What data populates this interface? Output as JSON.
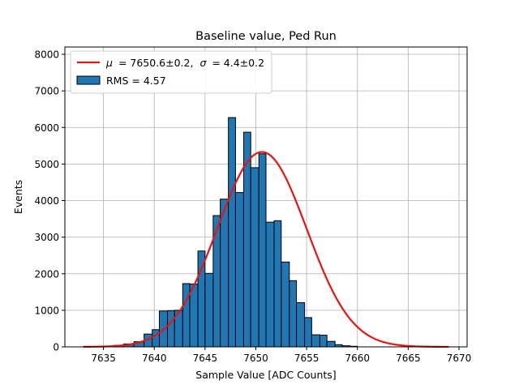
{
  "chart_data": {
    "type": "bar",
    "title": "Baseline value, Ped Run",
    "xlabel": "Sample Value [ADC Counts]",
    "ylabel": "Events",
    "xlim": [
      7631.2,
      7670.8
    ],
    "ylim": [
      0,
      8200
    ],
    "xticks": [
      7635,
      7640,
      7645,
      7650,
      7655,
      7660,
      7665,
      7670
    ],
    "yticks": [
      0,
      1000,
      2000,
      3000,
      4000,
      5000,
      6000,
      7000,
      8000
    ],
    "grid": true,
    "legend_position": "top-left",
    "histogram": {
      "name": "RMS = 4.57",
      "color": "#1f77b4",
      "edgecolor": "#000000",
      "bins": [
        {
          "x0": 7635.0,
          "x1": 7636.0,
          "value": 20
        },
        {
          "x0": 7636.0,
          "x1": 7637.0,
          "value": 40
        },
        {
          "x0": 7637.0,
          "x1": 7638.0,
          "value": 80
        },
        {
          "x0": 7638.0,
          "x1": 7639.0,
          "value": 140
        },
        {
          "x0": 7639.0,
          "x1": 7639.8,
          "value": 350
        },
        {
          "x0": 7639.8,
          "x1": 7640.5,
          "value": 470
        },
        {
          "x0": 7640.5,
          "x1": 7641.3,
          "value": 980
        },
        {
          "x0": 7641.3,
          "x1": 7642.0,
          "value": 990
        },
        {
          "x0": 7642.0,
          "x1": 7642.8,
          "value": 1000
        },
        {
          "x0": 7642.8,
          "x1": 7643.5,
          "value": 1730
        },
        {
          "x0": 7643.5,
          "x1": 7644.3,
          "value": 1720
        },
        {
          "x0": 7644.3,
          "x1": 7645.0,
          "value": 2620
        },
        {
          "x0": 7645.0,
          "x1": 7645.8,
          "value": 2010
        },
        {
          "x0": 7645.8,
          "x1": 7646.5,
          "value": 3590
        },
        {
          "x0": 7646.5,
          "x1": 7647.3,
          "value": 4040
        },
        {
          "x0": 7647.3,
          "x1": 7648.0,
          "value": 6270
        },
        {
          "x0": 7648.0,
          "x1": 7648.8,
          "value": 4220
        },
        {
          "x0": 7648.8,
          "x1": 7649.5,
          "value": 5870
        },
        {
          "x0": 7649.5,
          "x1": 7650.3,
          "value": 4900
        },
        {
          "x0": 7650.3,
          "x1": 7651.0,
          "value": 5280
        },
        {
          "x0": 7651.0,
          "x1": 7651.8,
          "value": 3410
        },
        {
          "x0": 7651.8,
          "x1": 7652.5,
          "value": 3450
        },
        {
          "x0": 7652.5,
          "x1": 7653.3,
          "value": 2320
        },
        {
          "x0": 7653.3,
          "x1": 7654.0,
          "value": 1810
        },
        {
          "x0": 7654.0,
          "x1": 7654.8,
          "value": 1210
        },
        {
          "x0": 7654.8,
          "x1": 7655.5,
          "value": 800
        },
        {
          "x0": 7655.5,
          "x1": 7656.3,
          "value": 330
        },
        {
          "x0": 7656.3,
          "x1": 7657.0,
          "value": 320
        },
        {
          "x0": 7657.0,
          "x1": 7657.8,
          "value": 150
        },
        {
          "x0": 7657.8,
          "x1": 7658.5,
          "value": 60
        },
        {
          "x0": 7658.5,
          "x1": 7659.3,
          "value": 30
        },
        {
          "x0": 7659.3,
          "x1": 7660.0,
          "value": 15
        }
      ]
    },
    "fit": {
      "name": "μ = 7650.6±0.2, σ = 4.4±0.2",
      "mu_text": "μ",
      "sigma_text": "σ",
      "mu_value": "= 7650.6±0.2,",
      "sigma_value": "= 4.4±0.2",
      "color": "#ee1111",
      "type": "gaussian",
      "mean": 7650.6,
      "sigma": 4.4,
      "amplitude": 5330,
      "x_range": [
        7633.0,
        7669.0
      ]
    }
  }
}
